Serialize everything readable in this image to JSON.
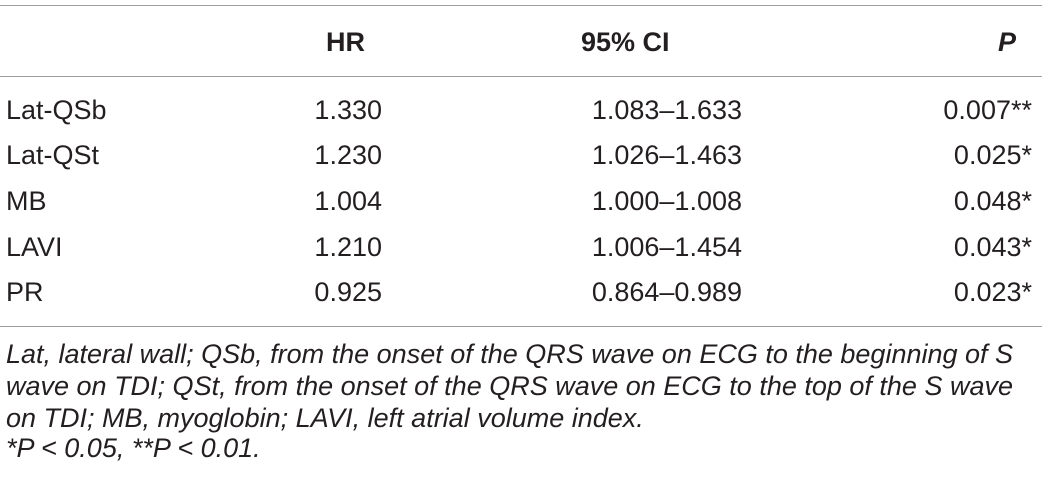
{
  "table": {
    "headers": {
      "variable": "",
      "hr": "HR",
      "ci": "95% CI",
      "p": "P"
    },
    "rows": [
      {
        "variable": "Lat-QSb",
        "hr": "1.330",
        "ci": "1.083–1.633",
        "p": "0.007**"
      },
      {
        "variable": "Lat-QSt",
        "hr": "1.230",
        "ci": "1.026–1.463",
        "p": "0.025*"
      },
      {
        "variable": "MB",
        "hr": "1.004",
        "ci": "1.000–1.008",
        "p": "0.048*"
      },
      {
        "variable": "LAVI",
        "hr": "1.210",
        "ci": "1.006–1.454",
        "p": "0.043*"
      },
      {
        "variable": "PR",
        "hr": "0.925",
        "ci": "0.864–0.989",
        "p": "0.023*"
      }
    ],
    "footnotes": {
      "abbreviations": "Lat, lateral wall; QSb, from the onset of the QRS wave on ECG to the beginning of S wave on TDI; QSt, from the onset of the QRS wave on ECG to the top of the S wave on TDI; MB, myoglobin; LAVI, left atrial volume index.",
      "significance": "*P < 0.05, **P < 0.01."
    }
  },
  "colors": {
    "text": "#231f20",
    "rule": "#9f9f9f"
  }
}
